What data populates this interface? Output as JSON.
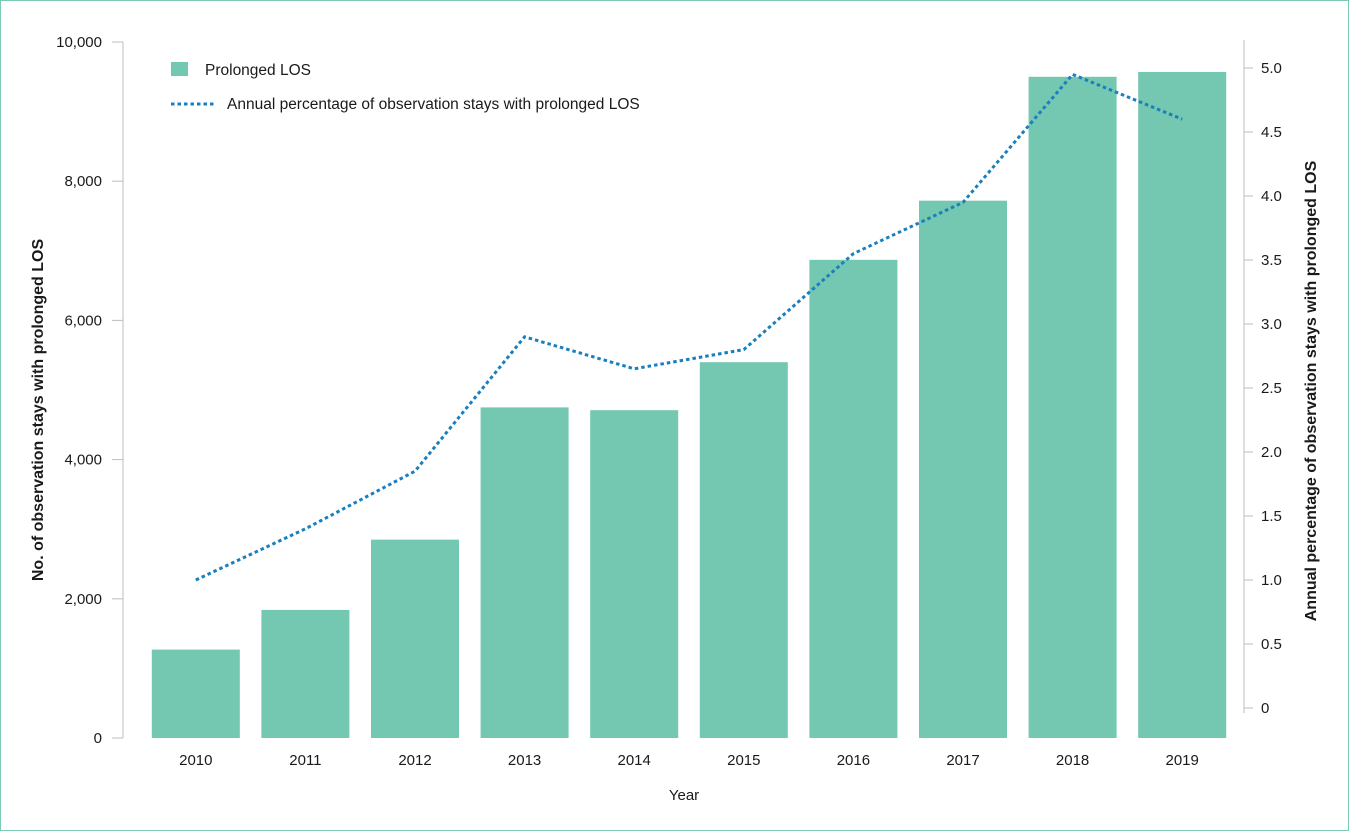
{
  "chart_data": {
    "type": "bar",
    "categories": [
      "2010",
      "2011",
      "2012",
      "2013",
      "2014",
      "2015",
      "2016",
      "2017",
      "2018",
      "2019"
    ],
    "series": [
      {
        "name": "Prolonged LOS",
        "type": "bar",
        "axis": "left",
        "values": [
          1270,
          1840,
          2850,
          4750,
          4710,
          5400,
          6870,
          7720,
          9500,
          9570
        ]
      },
      {
        "name": "Annual percentage of observation stays with prolonged LOS",
        "type": "line",
        "axis": "right",
        "style": "dotted",
        "values": [
          1.0,
          1.4,
          1.85,
          2.9,
          2.65,
          2.8,
          3.55,
          3.95,
          4.95,
          4.6
        ]
      }
    ],
    "xlabel": "Year",
    "ylabel_left": "No. of observation stays with prolonged LOS",
    "ylabel_right": "Annual percentage of observation stays with prolonged LOS",
    "ylim_left": [
      0,
      10000
    ],
    "ylim_right": [
      0,
      5.0
    ],
    "yticks_left": [
      "0",
      "2,000",
      "4,000",
      "6,000",
      "8,000",
      "10,000"
    ],
    "yticks_right": [
      "0",
      "0.5",
      "1.0",
      "1.5",
      "2.0",
      "2.5",
      "3.0",
      "3.5",
      "4.0",
      "4.5",
      "5.0"
    ],
    "grid": false,
    "legend_position": "top-left",
    "colors": {
      "bar": "#74c7b0",
      "line": "#1a7fbf",
      "axis": "#bdbdbd",
      "frame": "#7cc9b5"
    }
  }
}
